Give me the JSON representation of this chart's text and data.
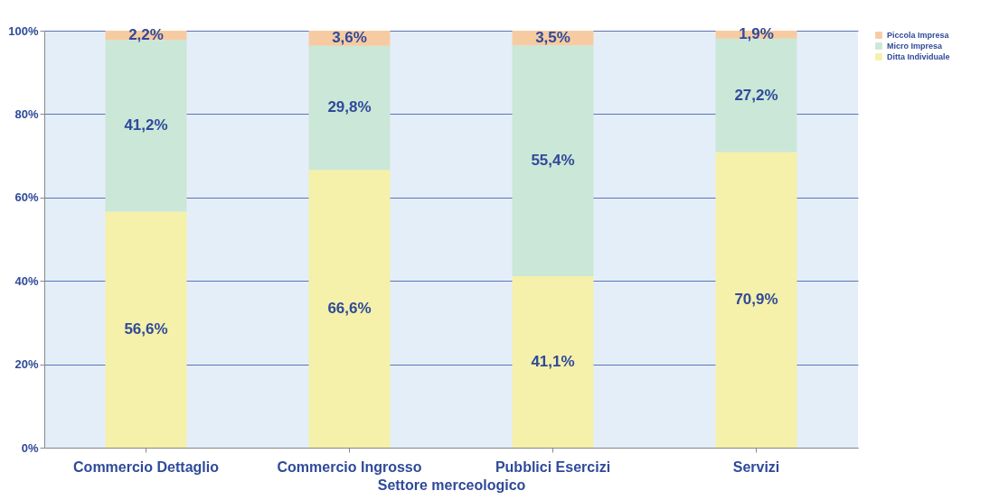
{
  "chart_data": {
    "type": "bar",
    "stacked": true,
    "xlabel": "Settore merceologico",
    "categories": [
      "Commercio Dettaglio",
      "Commercio Ingrosso",
      "Pubblici Esercizi",
      "Servizi"
    ],
    "series": [
      {
        "name": "Ditta Individuale",
        "color": "#f5f0aa",
        "values": [
          56.6,
          66.6,
          41.1,
          70.9
        ],
        "value_labels": [
          "56,6%",
          "66,6%",
          "41,1%",
          "70,9%"
        ]
      },
      {
        "name": "Micro Impresa",
        "color": "#cbe7d7",
        "values": [
          41.2,
          29.8,
          55.4,
          27.2
        ],
        "value_labels": [
          "41,2%",
          "29,8%",
          "55,4%",
          "27,2%"
        ]
      },
      {
        "name": "Piccola Impresa",
        "color": "#f7cba2",
        "values": [
          2.2,
          3.6,
          3.5,
          1.9
        ],
        "value_labels": [
          "2,2%",
          "3,6%",
          "3,5%",
          "1,9%"
        ]
      }
    ],
    "ylim": [
      0,
      100
    ],
    "yticks": [
      {
        "value": 0,
        "label": "0%"
      },
      {
        "value": 20,
        "label": "20%"
      },
      {
        "value": 40,
        "label": "40%"
      },
      {
        "value": 60,
        "label": "60%"
      },
      {
        "value": 80,
        "label": "80%"
      },
      {
        "value": 100,
        "label": "100%"
      }
    ],
    "grid": "y",
    "legend": "right"
  }
}
